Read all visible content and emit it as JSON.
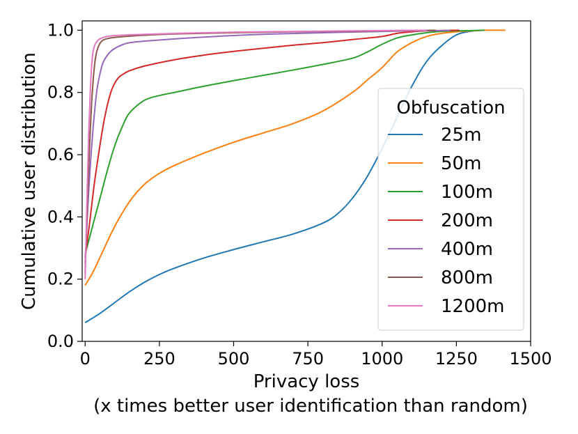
{
  "chart_data": {
    "type": "line",
    "xlabel_line1": "Privacy loss",
    "xlabel_line2": "(x times better user identification than random)",
    "ylabel": "Cumulative user distribution",
    "xlim": [
      -10,
      1500
    ],
    "ylim": [
      0,
      1.03
    ],
    "xticks": [
      0,
      250,
      500,
      750,
      1000,
      1250,
      1500
    ],
    "yticks": [
      0.0,
      0.2,
      0.4,
      0.6,
      0.8,
      1.0
    ],
    "xtick_labels": [
      "0",
      "250",
      "500",
      "750",
      "1000",
      "1250",
      "1500"
    ],
    "ytick_labels": [
      "0.0",
      "0.2",
      "0.4",
      "0.6",
      "0.8",
      "1.0"
    ],
    "grid": false,
    "legend": {
      "title": "Obfuscation",
      "placement": "center-right"
    },
    "series": [
      {
        "name": "25m",
        "color": "#1f77b4",
        "x": [
          0,
          50,
          100,
          150,
          200,
          250,
          300,
          400,
          500,
          600,
          700,
          800,
          850,
          900,
          950,
          1000,
          1050,
          1100,
          1150,
          1200,
          1250,
          1300,
          1350
        ],
        "y": [
          0.06,
          0.09,
          0.125,
          0.16,
          0.19,
          0.215,
          0.235,
          0.268,
          0.295,
          0.32,
          0.345,
          0.38,
          0.41,
          0.46,
          0.53,
          0.62,
          0.72,
          0.82,
          0.9,
          0.95,
          0.985,
          0.997,
          1.0
        ]
      },
      {
        "name": "50m",
        "color": "#ff7f0e",
        "x": [
          0,
          25,
          50,
          100,
          150,
          200,
          250,
          300,
          400,
          500,
          600,
          700,
          800,
          900,
          950,
          1000,
          1050,
          1100,
          1150,
          1200,
          1250,
          1300,
          1350,
          1415
        ],
        "y": [
          0.18,
          0.22,
          0.27,
          0.37,
          0.45,
          0.505,
          0.54,
          0.565,
          0.605,
          0.64,
          0.67,
          0.7,
          0.74,
          0.8,
          0.84,
          0.88,
          0.93,
          0.96,
          0.98,
          0.99,
          0.995,
          0.998,
          1.0,
          1.0
        ]
      },
      {
        "name": "100m",
        "color": "#2ca02c",
        "x": [
          0,
          25,
          50,
          75,
          100,
          125,
          150,
          200,
          250,
          300,
          400,
          500,
          600,
          700,
          800,
          900,
          950,
          1000,
          1050,
          1100,
          1150,
          1200,
          1250,
          1300,
          1345
        ],
        "y": [
          0.28,
          0.37,
          0.46,
          0.55,
          0.63,
          0.69,
          0.735,
          0.775,
          0.79,
          0.8,
          0.82,
          0.838,
          0.855,
          0.872,
          0.89,
          0.91,
          0.93,
          0.955,
          0.975,
          0.985,
          0.992,
          0.996,
          0.998,
          0.999,
          1.0
        ]
      },
      {
        "name": "200m",
        "color": "#d62728",
        "x": [
          0,
          15,
          30,
          45,
          60,
          75,
          90,
          110,
          130,
          150,
          200,
          300,
          400,
          500,
          600,
          700,
          800,
          900,
          1000,
          1050,
          1100,
          1150,
          1200,
          1260
        ],
        "y": [
          0.27,
          0.38,
          0.5,
          0.6,
          0.69,
          0.76,
          0.81,
          0.845,
          0.86,
          0.87,
          0.885,
          0.905,
          0.92,
          0.932,
          0.942,
          0.952,
          0.96,
          0.97,
          0.98,
          0.99,
          0.995,
          0.998,
          0.999,
          1.0
        ]
      },
      {
        "name": "400m",
        "color": "#9467bd",
        "x": [
          0,
          10,
          20,
          30,
          40,
          50,
          60,
          75,
          90,
          110,
          130,
          150,
          200,
          300,
          400,
          500,
          600,
          800,
          1000,
          1100,
          1200,
          1230
        ],
        "y": [
          0.25,
          0.45,
          0.6,
          0.72,
          0.81,
          0.86,
          0.895,
          0.92,
          0.935,
          0.947,
          0.955,
          0.96,
          0.965,
          0.972,
          0.978,
          0.983,
          0.987,
          0.992,
          0.996,
          0.998,
          0.999,
          1.0
        ]
      },
      {
        "name": "800m",
        "color": "#8c564b",
        "x": [
          0,
          8,
          16,
          24,
          32,
          40,
          50,
          60,
          75,
          100,
          150,
          200,
          300,
          500,
          700,
          900,
          1100,
          1180
        ],
        "y": [
          0.22,
          0.45,
          0.65,
          0.8,
          0.89,
          0.935,
          0.958,
          0.968,
          0.973,
          0.977,
          0.981,
          0.984,
          0.988,
          0.992,
          0.995,
          0.997,
          0.999,
          1.0
        ]
      },
      {
        "name": "1200m",
        "color": "#e377c2",
        "x": [
          0,
          6,
          12,
          18,
          24,
          30,
          38,
          46,
          56,
          70,
          100,
          200,
          400,
          600,
          800,
          1000,
          1150
        ],
        "y": [
          0.2,
          0.45,
          0.67,
          0.82,
          0.91,
          0.945,
          0.962,
          0.97,
          0.975,
          0.979,
          0.983,
          0.987,
          0.992,
          0.995,
          0.997,
          0.999,
          1.0
        ]
      }
    ]
  }
}
